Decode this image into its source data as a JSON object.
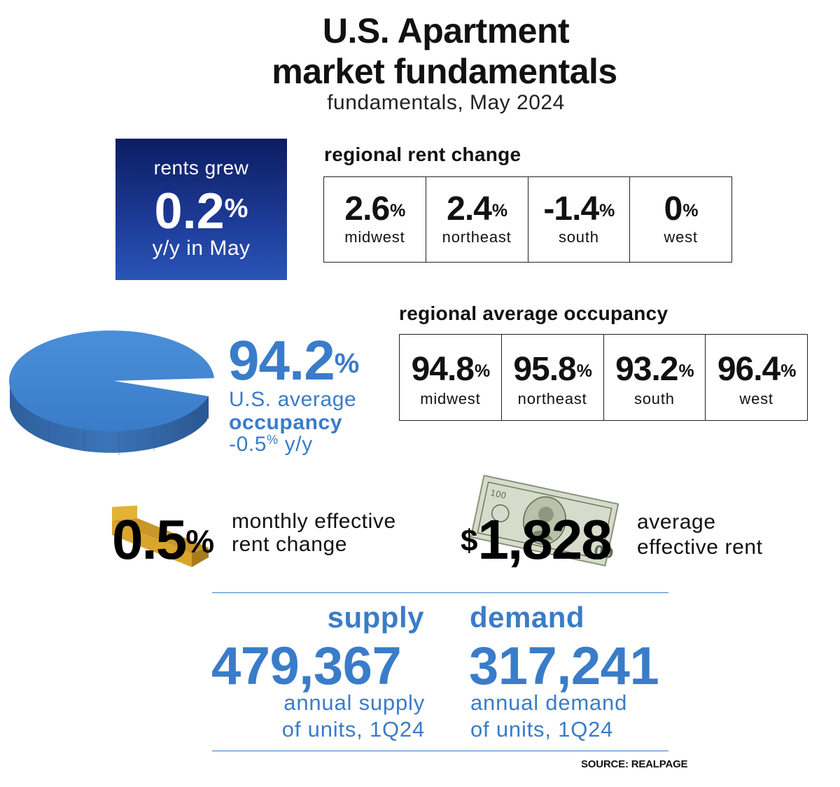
{
  "header": {
    "title_line1": "U.S. Apartment",
    "title_line2": "market fundamentals",
    "subtitle": "fundamentals, May 2024"
  },
  "rent_growth": {
    "line1": "rents grew",
    "value": "0.2",
    "unit": "%",
    "line3": "y/y in May"
  },
  "regional_rent": {
    "title": "regional rent change",
    "cells": [
      {
        "value": "2.6",
        "unit": "%",
        "region": "midwest"
      },
      {
        "value": "2.4",
        "unit": "%",
        "region": "northeast"
      },
      {
        "value": "-1.4",
        "unit": "%",
        "region": "south"
      },
      {
        "value": "0",
        "unit": "%",
        "region": "west"
      }
    ]
  },
  "occupancy": {
    "value": "94.2",
    "unit": "%",
    "line1": "U.S. average",
    "line2": "occupancy",
    "change_value": "-0.5",
    "change_unit": "%",
    "change_suffix": " y/y",
    "pie_share": 0.942
  },
  "regional_occupancy": {
    "title": "regional average occupancy",
    "cells": [
      {
        "value": "94.8",
        "unit": "%",
        "region": "midwest"
      },
      {
        "value": "95.8",
        "unit": "%",
        "region": "northeast"
      },
      {
        "value": "93.2",
        "unit": "%",
        "region": "south"
      },
      {
        "value": "96.4",
        "unit": "%",
        "region": "west"
      }
    ]
  },
  "monthly_change": {
    "value": "0.5",
    "unit": "%",
    "line1": "monthly effective",
    "line2": "rent change"
  },
  "average_rent": {
    "currency": "$",
    "value": "1,828",
    "line1": "average",
    "line2": "effective rent"
  },
  "supply": {
    "heading": "supply",
    "value": "479,367",
    "line1": "annual supply",
    "line2": "of units, 1Q24"
  },
  "demand": {
    "heading": "demand",
    "value": "317,241",
    "line1": "annual demand",
    "line2": "of units, 1Q24"
  },
  "source": "SOURCE: REALPAGE",
  "colors": {
    "accent_blue": "#3a7cc9",
    "navy": "#0c1d62",
    "gold": "#d9a52b",
    "text": "#111111"
  }
}
